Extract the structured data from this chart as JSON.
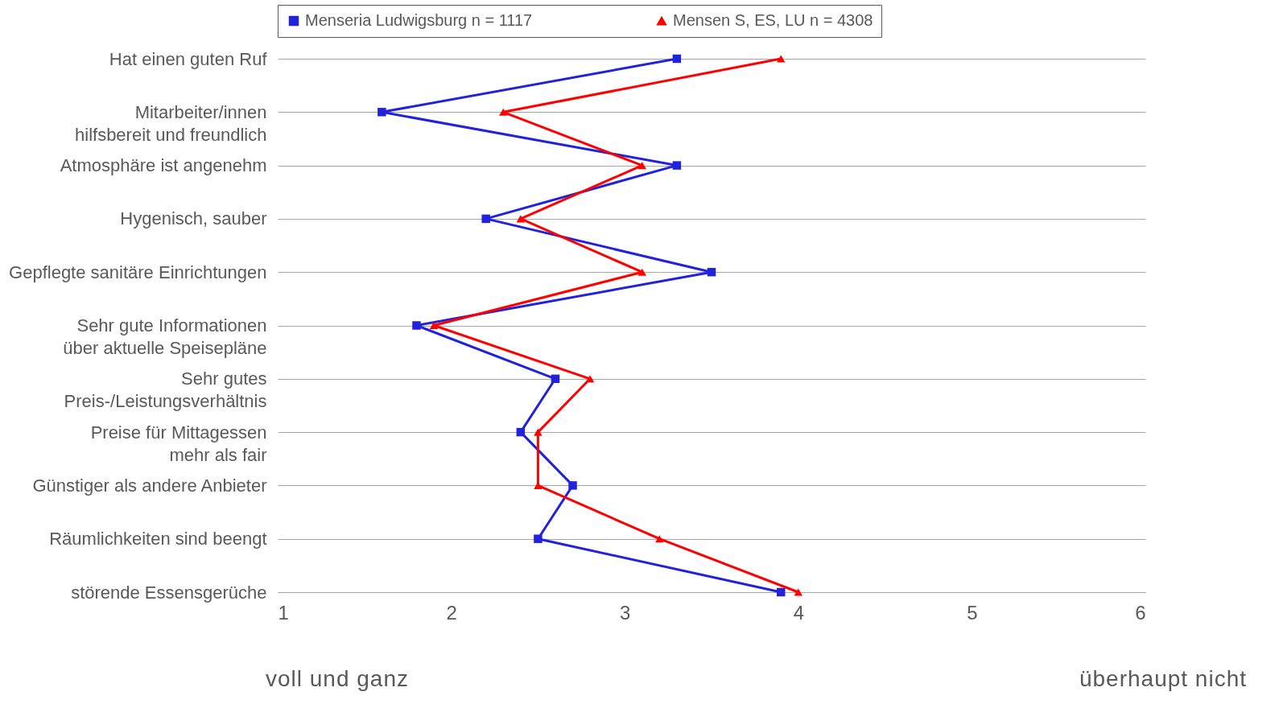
{
  "chart_data": {
    "type": "line",
    "orientation": "horizontal",
    "categories": [
      "Hat einen guten Ruf",
      "Mitarbeiter/innen\nhilfsbereit und freundlich",
      "Atmosphäre ist angenehm",
      "Hygenisch, sauber",
      "Gepflegte sanitäre Einrichtungen",
      "Sehr gute Informationen\nüber aktuelle Speisepläne",
      "Sehr gutes\nPreis-/Leistungsverhältnis",
      "Preise für Mittagessen\nmehr als fair",
      "Günstiger als andere Anbieter",
      "Räumlichkeiten sind beengt",
      "störende Essensgerüche"
    ],
    "series": [
      {
        "name": "Menseria Ludwigsburg n = 1117",
        "color": "#2222dd",
        "marker": "square",
        "values": [
          3.3,
          1.6,
          3.3,
          2.2,
          3.5,
          1.8,
          2.6,
          2.4,
          2.7,
          2.5,
          3.9
        ]
      },
      {
        "name": "Mensen S, ES, LU n = 4308",
        "color": "#ff0000",
        "marker": "triangle",
        "values": [
          3.9,
          2.3,
          3.1,
          2.4,
          3.1,
          1.9,
          2.8,
          2.5,
          2.5,
          3.2,
          4.0
        ]
      }
    ],
    "xlim": [
      1,
      6
    ],
    "xticks": [
      1,
      2,
      3,
      4,
      5,
      6
    ],
    "grid": "y",
    "legend": "top",
    "annotations": [
      "voll und ganz",
      "überhaupt nicht"
    ]
  }
}
